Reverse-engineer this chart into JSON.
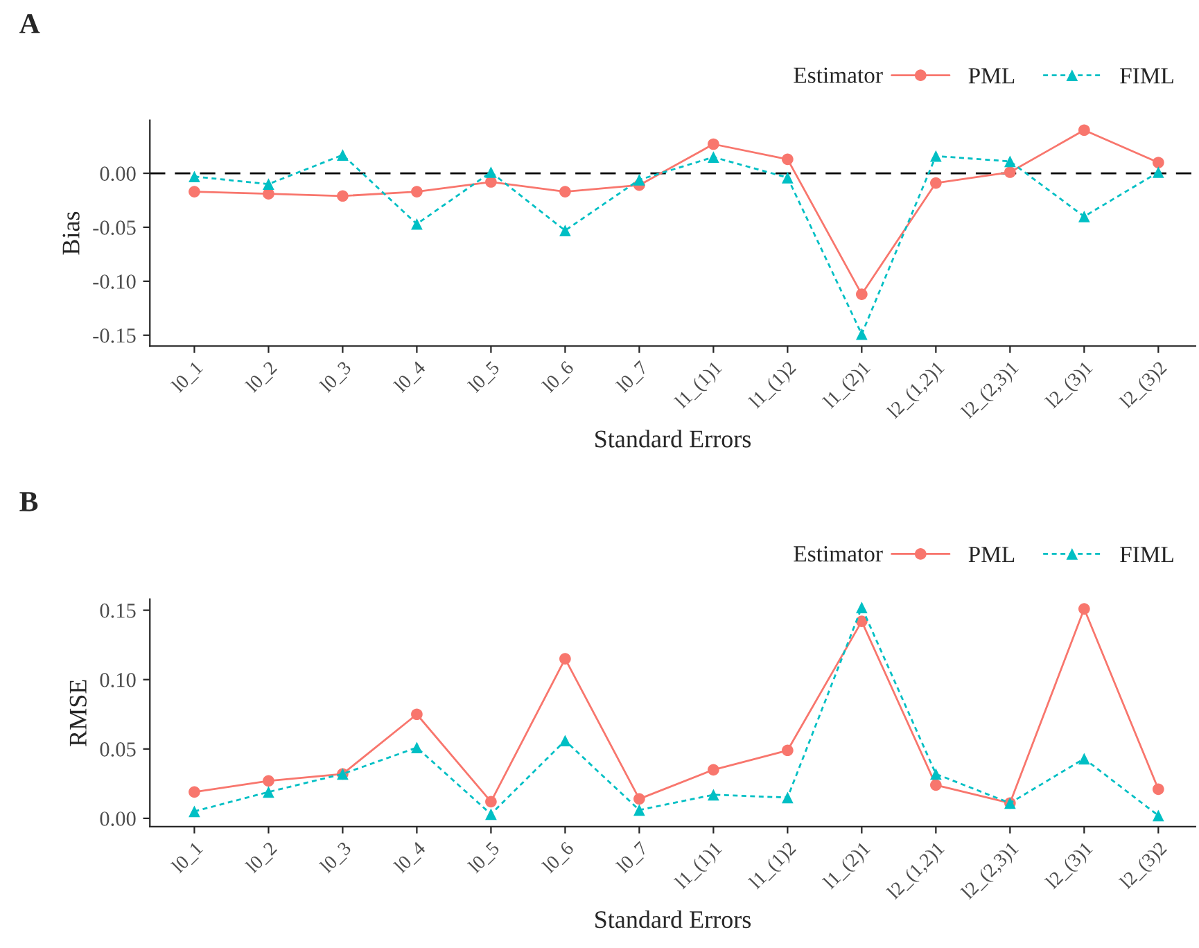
{
  "chart_data": [
    {
      "type": "line",
      "title": "A",
      "xlabel": "Standard Errors",
      "ylabel": "Bias",
      "legend_title": "Estimator",
      "legend": "top right",
      "grid": false,
      "categories": [
        "l0_1",
        "l0_2",
        "l0_3",
        "l0_4",
        "l0_5",
        "l0_6",
        "l0_7",
        "l1_(1)1",
        "l1_(1)2",
        "l1_(2)1",
        "l2_(1,2)1",
        "l2_(2,3)1",
        "l2_(3)1",
        "l2_(3)2"
      ],
      "ylim": [
        -0.16,
        0.049
      ],
      "yticks": [
        {
          "value": -0.15,
          "label": "-0.15"
        },
        {
          "value": -0.1,
          "label": "-0.10"
        },
        {
          "value": -0.05,
          "label": "-0.05"
        },
        {
          "value": 0,
          "label": "0.00"
        }
      ],
      "ref_lines": [
        {
          "axis": "y",
          "value": 0,
          "color": "#000000",
          "line_style": "dashed"
        }
      ],
      "series": [
        {
          "name": "PML",
          "color": "#f8766d",
          "marker": "circle",
          "line_style": "solid",
          "values": [
            -0.017,
            -0.019,
            -0.021,
            -0.017,
            -0.008,
            -0.017,
            -0.011,
            0.027,
            0.013,
            -0.112,
            -0.009,
            0.001,
            0.04,
            0.01
          ]
        },
        {
          "name": "FIML",
          "color": "#00bfc4",
          "marker": "triangle",
          "line_style": "dashed",
          "values": [
            -0.003,
            -0.01,
            0.017,
            -0.047,
            0.001,
            -0.053,
            -0.006,
            0.015,
            -0.004,
            -0.149,
            0.016,
            0.011,
            -0.04,
            0.001
          ]
        }
      ]
    },
    {
      "type": "line",
      "title": "B",
      "xlabel": "Standard Errors",
      "ylabel": "RMSE",
      "legend_title": "Estimator",
      "legend": "top right",
      "grid": false,
      "categories": [
        "l0_1",
        "l0_2",
        "l0_3",
        "l0_4",
        "l0_5",
        "l0_6",
        "l0_7",
        "l1_(1)1",
        "l1_(1)2",
        "l1_(2)1",
        "l2_(1,2)1",
        "l2_(2,3)1",
        "l2_(3)1",
        "l2_(3)2"
      ],
      "ylim": [
        -0.006,
        0.158
      ],
      "yticks": [
        {
          "value": 0,
          "label": "0.00"
        },
        {
          "value": 0.05,
          "label": "0.05"
        },
        {
          "value": 0.1,
          "label": "0.10"
        },
        {
          "value": 0.15,
          "label": "0.15"
        }
      ],
      "series": [
        {
          "name": "PML",
          "color": "#f8766d",
          "marker": "circle",
          "line_style": "solid",
          "values": [
            0.019,
            0.027,
            0.032,
            0.075,
            0.012,
            0.115,
            0.014,
            0.035,
            0.049,
            0.142,
            0.024,
            0.011,
            0.151,
            0.021
          ]
        },
        {
          "name": "FIML",
          "color": "#00bfc4",
          "marker": "triangle",
          "line_style": "dashed",
          "values": [
            0.005,
            0.019,
            0.032,
            0.051,
            0.003,
            0.056,
            0.006,
            0.017,
            0.015,
            0.152,
            0.032,
            0.011,
            0.043,
            0.002
          ]
        }
      ]
    }
  ]
}
